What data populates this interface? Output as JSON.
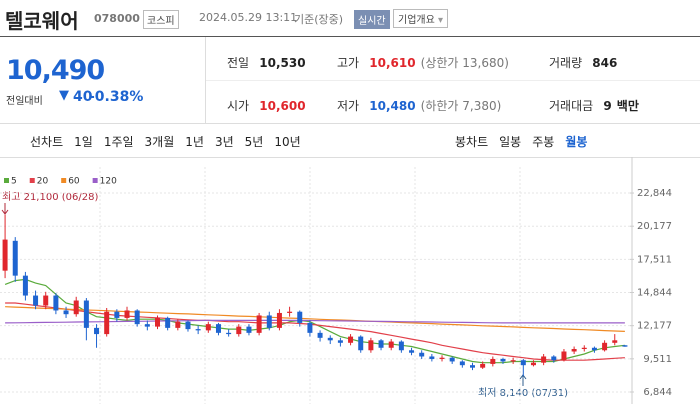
{
  "header": {
    "name": "텔코웨어",
    "code": "078000",
    "market": "코스피",
    "datetime": "2024.05.29 13:11",
    "basis": "기준(장중)",
    "realtime": "실시간",
    "company_info": "기업개요"
  },
  "price": {
    "current": "10,490",
    "change_label": "전일대비",
    "change": "40",
    "change_rate": "-0.38%"
  },
  "stats": [
    {
      "label": "전일",
      "value": "10,530"
    },
    {
      "label": "고가",
      "value": "10,610",
      "note": "(상한가 13,680)"
    },
    {
      "label": "거래량",
      "value": "846"
    },
    {
      "label": "시가",
      "value": "10,600"
    },
    {
      "label": "저가",
      "value": "10,480",
      "note": "(하한가 7,380)"
    },
    {
      "label": "거래대금",
      "value": "9",
      "unit": "백만"
    }
  ],
  "tabs": {
    "line_label": "선차트",
    "line": [
      "1일",
      "1주일",
      "3개월",
      "1년",
      "3년",
      "5년",
      "10년"
    ],
    "candle_label": "봉차트",
    "candle": [
      "일봉",
      "주봉",
      "월봉"
    ],
    "selected": "월봉"
  },
  "chart_data": {
    "type": "candlestick",
    "categories": [
      null,
      null,
      null,
      null,
      null,
      null,
      null,
      null,
      null,
      null,
      null,
      null,
      null,
      null,
      null,
      null,
      null,
      null,
      null,
      null,
      null,
      null,
      null,
      null,
      null,
      null,
      null,
      null,
      null,
      null,
      null,
      null,
      null,
      null,
      null,
      null,
      null,
      null,
      null,
      null,
      null,
      null,
      null,
      null,
      null,
      null,
      null,
      null,
      null,
      null,
      null,
      null,
      null,
      null,
      null,
      null,
      null,
      null,
      null,
      null,
      null,
      null
    ],
    "open": [
      16600,
      19000,
      16200,
      14600,
      13800,
      14600,
      13400,
      13100,
      14200,
      12000,
      11500,
      13300,
      12800,
      13400,
      12300,
      12100,
      12800,
      12000,
      12500,
      11900,
      11800,
      12300,
      11600,
      11500,
      12100,
      11600,
      13000,
      12000,
      13200,
      13300,
      12400,
      11600,
      11200,
      11000,
      10800,
      11300,
      10200,
      11000,
      10400,
      10900,
      10200,
      10000,
      9700,
      9500,
      9600,
      9300,
      9000,
      8800,
      9100,
      9500,
      9300,
      9400,
      9000,
      9200,
      9700,
      9400,
      10100,
      10300,
      10400,
      10200,
      10800,
      10600
    ],
    "high": [
      21100,
      19300,
      16500,
      15000,
      14900,
      14800,
      13700,
      14500,
      14400,
      12300,
      13600,
      13500,
      13700,
      13500,
      12600,
      13000,
      12900,
      12700,
      12600,
      12200,
      12500,
      12400,
      11900,
      12300,
      12300,
      13200,
      13300,
      13500,
      13700,
      13400,
      12600,
      11800,
      11400,
      11200,
      11500,
      11400,
      11200,
      11100,
      11100,
      11000,
      10400,
      10200,
      9900,
      9800,
      9700,
      9400,
      9200,
      9300,
      9700,
      9600,
      9600,
      9500,
      9400,
      9900,
      9800,
      10300,
      10500,
      10600,
      10500,
      11000,
      11500,
      10610
    ],
    "low": [
      16000,
      15700,
      14200,
      13500,
      13500,
      13100,
      12800,
      12900,
      11000,
      10400,
      11300,
      12500,
      12600,
      12100,
      11800,
      11900,
      11800,
      11800,
      11700,
      11500,
      11600,
      11400,
      11300,
      11300,
      11400,
      11400,
      11800,
      11800,
      12900,
      12100,
      11300,
      10900,
      10700,
      10500,
      10600,
      10000,
      10000,
      10200,
      10200,
      10000,
      9800,
      9500,
      9300,
      9300,
      9100,
      8800,
      8600,
      8700,
      8900,
      9100,
      9100,
      8140,
      8900,
      9000,
      9200,
      9300,
      9900,
      10100,
      10000,
      10100,
      10600,
      10480
    ],
    "close": [
      19100,
      16200,
      14600,
      13800,
      14600,
      13400,
      13100,
      14200,
      12000,
      11500,
      13300,
      12800,
      13400,
      12300,
      12100,
      12800,
      12000,
      12500,
      11900,
      11800,
      12300,
      11600,
      11500,
      12100,
      11600,
      13000,
      12000,
      13200,
      13300,
      12400,
      11600,
      11200,
      11000,
      10800,
      11300,
      10200,
      11000,
      10400,
      10900,
      10200,
      10000,
      9700,
      9500,
      9600,
      9300,
      9000,
      8800,
      9100,
      9500,
      9300,
      9400,
      9000,
      9200,
      9700,
      9400,
      10100,
      10300,
      10400,
      10200,
      10800,
      11000,
      10490
    ],
    "up_color": "#e0262c",
    "down_color": "#1e64d0",
    "series": [
      {
        "name": "5",
        "color": "#5aab3c",
        "values": [
          15500,
          15800,
          15900,
          15600,
          15400,
          14700,
          14000,
          13800,
          13300,
          12900,
          12800,
          12700,
          12600,
          12700,
          12700,
          12700,
          12600,
          12400,
          12300,
          12200,
          12100,
          12000,
          11900,
          11900,
          11800,
          11900,
          12000,
          12200,
          12500,
          12600,
          12500,
          12100,
          11700,
          11300,
          11100,
          10900,
          10800,
          10700,
          10700,
          10600,
          10500,
          10300,
          10100,
          9900,
          9700,
          9500,
          9300,
          9200,
          9200,
          9200,
          9300,
          9300,
          9300,
          9300,
          9300,
          9500,
          9700,
          9900,
          10200,
          10400,
          10500,
          10600
        ]
      },
      {
        "name": "20",
        "color": "#e2404a",
        "values": [
          14000,
          14000,
          13900,
          13800,
          13700,
          13600,
          13500,
          13400,
          13300,
          13200,
          13100,
          13000,
          12950,
          12900,
          12850,
          12800,
          12750,
          12700,
          12650,
          12600,
          12600,
          12550,
          12500,
          12500,
          12450,
          12400,
          12400,
          12400,
          12400,
          12350,
          12300,
          12200,
          12100,
          12000,
          11900,
          11800,
          11700,
          11550,
          11400,
          11250,
          11100,
          10950,
          10800,
          10600,
          10450,
          10300,
          10150,
          10000,
          9900,
          9800,
          9700,
          9600,
          9500,
          9450,
          9400,
          9400,
          9400,
          9400,
          9450,
          9500,
          9550,
          9600
        ]
      },
      {
        "name": "60",
        "color": "#f08a24",
        "values": [
          13700,
          13670,
          13640,
          13600,
          13570,
          13540,
          13510,
          13470,
          13440,
          13410,
          13380,
          13340,
          13310,
          13280,
          13250,
          13210,
          13180,
          13150,
          13120,
          13080,
          13050,
          13020,
          12990,
          12950,
          12920,
          12890,
          12860,
          12820,
          12790,
          12760,
          12730,
          12690,
          12660,
          12630,
          12600,
          12560,
          12530,
          12500,
          12470,
          12430,
          12400,
          12370,
          12340,
          12300,
          12270,
          12240,
          12210,
          12170,
          12140,
          12110,
          12080,
          12040,
          12010,
          11980,
          11950,
          11910,
          11880,
          11850,
          11820,
          11780,
          11750,
          11720
        ]
      },
      {
        "name": "120",
        "color": "#9a5fc9",
        "values": [
          12400,
          12410,
          12420,
          12430,
          12440,
          12450,
          12460,
          12470,
          12480,
          12490,
          12500,
          12510,
          12520,
          12530,
          12540,
          12550,
          12560,
          12570,
          12580,
          12590,
          12600,
          12600,
          12600,
          12600,
          12600,
          12600,
          12600,
          12600,
          12600,
          12600,
          12590,
          12580,
          12570,
          12560,
          12550,
          12540,
          12530,
          12520,
          12510,
          12500,
          12490,
          12480,
          12470,
          12460,
          12450,
          12440,
          12430,
          12420,
          12410,
          12400,
          12400,
          12400,
          12400,
          12400,
          12400,
          12400,
          12400,
          12400,
          12400,
          12400,
          12400,
          12400
        ]
      }
    ],
    "ylim": [
      6200,
      25500
    ],
    "yticks": [
      {
        "value": 22844,
        "label": "22,844"
      },
      {
        "value": 20177,
        "label": "20,177"
      },
      {
        "value": 17511,
        "label": "17,511"
      },
      {
        "value": 14844,
        "label": "14,844"
      },
      {
        "value": 12177,
        "label": "12,177"
      },
      {
        "value": 9511,
        "label": "9,511"
      },
      {
        "value": 6844,
        "label": "6,844"
      }
    ],
    "grid": true,
    "annotations": [
      "최고 21,100 (06/28)",
      "최저 8,140 (07/31)"
    ]
  }
}
